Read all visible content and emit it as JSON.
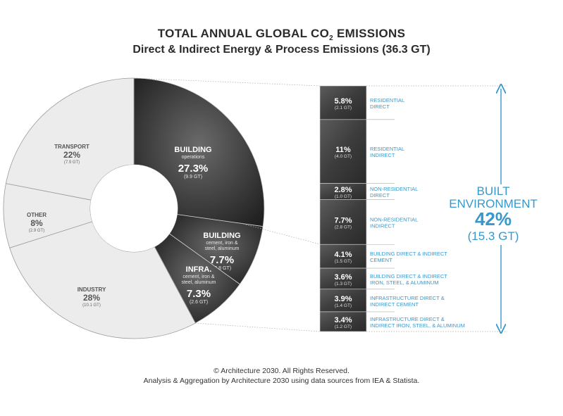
{
  "title": {
    "line1_prefix": "TOTAL ANNUAL GLOBAL CO",
    "line1_sub": "2",
    "line1_suffix": " EMISSIONS",
    "line2": "Direct & Indirect Energy & Process Emissions (36.3 GT)"
  },
  "footer": {
    "copyright": "© Architecture 2030. All Rights Reserved.",
    "source": "Analysis & Aggregation by Architecture 2030 using data sources from IEA & Statista."
  },
  "colors": {
    "light": "#ececec",
    "dark": "#3a3a3a",
    "darkest": "#222222",
    "accent": "#3a97c9",
    "separator": "#9a9a9a"
  },
  "chart_data": {
    "type": "pie",
    "title": "TOTAL ANNUAL GLOBAL CO2 EMISSIONS",
    "subtitle": "Direct & Indirect Energy & Process Emissions (36.3 GT)",
    "total_gt": 36.3,
    "slices": [
      {
        "name": "BUILDING",
        "sub": "operations",
        "value": 27.3,
        "pct": "27.3%",
        "gt": "(9.9 GT)",
        "dark": true
      },
      {
        "name": "BUILDING",
        "sub": "cement, iron & steel, aluminum",
        "value": 7.7,
        "pct": "7.7%",
        "gt": "(2.8 GT)",
        "dark": true
      },
      {
        "name": "INFRA.",
        "sub": "cement, iron & steel, aluminum",
        "value": 7.3,
        "pct": "7.3%",
        "gt": "(2.6 GT)",
        "dark": true
      },
      {
        "name": "INDUSTRY",
        "sub": "",
        "value": 28,
        "pct": "28%",
        "gt": "(10.1 GT)",
        "dark": false
      },
      {
        "name": "OTHER",
        "sub": "",
        "value": 8,
        "pct": "8%",
        "gt": "(2.9 GT)",
        "dark": false
      },
      {
        "name": "TRANSPORT",
        "sub": "",
        "value": 22,
        "pct": "22%",
        "gt": "(7.9 GT)",
        "dark": false
      }
    ],
    "breakdown": [
      {
        "pct": "5.8%",
        "gt": "(2.1 GT)",
        "value": 5.8,
        "label1": "RESIDENTIAL",
        "label2": "DIRECT"
      },
      {
        "pct": "11%",
        "gt": "(4.0 GT)",
        "value": 11,
        "label1": "RESIDENTIAL",
        "label2": "INDIRECT"
      },
      {
        "pct": "2.8%",
        "gt": "(1.0 GT)",
        "value": 2.8,
        "label1": "NON-RESIDENTIAL",
        "label2": "DIRECT"
      },
      {
        "pct": "7.7%",
        "gt": "(2.8 GT)",
        "value": 7.7,
        "label1": "NON-RESIDENTIAL",
        "label2": "INDIRECT"
      },
      {
        "pct": "4.1%",
        "gt": "(1.5 GT)",
        "value": 4.1,
        "label1": "BUILDING DIRECT & INDIRECT",
        "label2": "CEMENT"
      },
      {
        "pct": "3.6%",
        "gt": "(1.3 GT)",
        "value": 3.6,
        "label1": "BUILDING DIRECT & INDIRECT",
        "label2": "IRON, STEEL, & ALUMINUM"
      },
      {
        "pct": "3.9%",
        "gt": "(1.4 GT)",
        "value": 3.9,
        "label1": "INFRASTRUCTURE DIRECT &",
        "label2": "INDIRECT CEMENT"
      },
      {
        "pct": "3.4%",
        "gt": "(1.2 GT)",
        "value": 3.4,
        "label1": "INFRASTRUCTURE DIRECT &",
        "label2": "INDIRECT IRON, STEEL, & ALUMINUM"
      }
    ],
    "built_environment": {
      "line1": "BUILT",
      "line2": "ENVIRONMENT",
      "pct": "42%",
      "gt": "(15.3 GT)",
      "value": 42
    }
  }
}
